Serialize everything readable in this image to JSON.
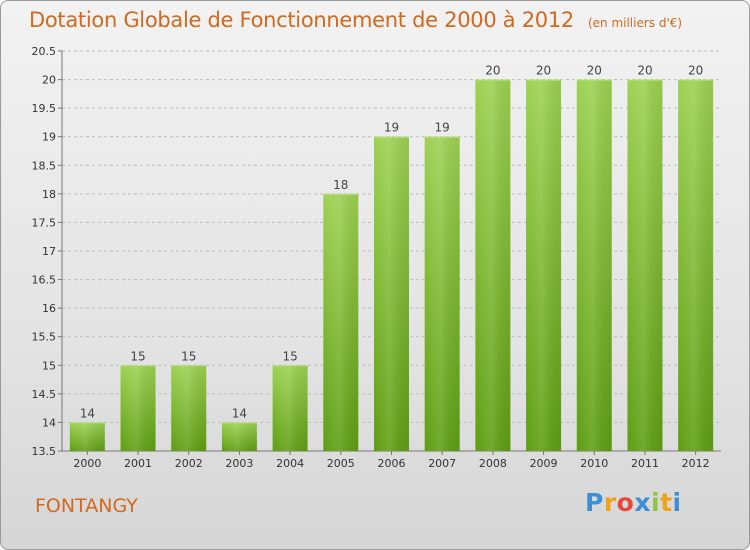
{
  "title": "Dotation Globale de Fonctionnement de 2000 à 2012",
  "subtitle": "(en milliers d'€)",
  "commune": "FONTANGY",
  "brand": {
    "letters": [
      "P",
      "r",
      "o",
      "x",
      "i",
      "t",
      "i"
    ],
    "colors": [
      "#3a8fd6",
      "#f0a21b",
      "#e9463c",
      "#3a8fd6",
      "#8dc63f",
      "#f0a21b",
      "#3a8fd6"
    ]
  },
  "chart_data": {
    "type": "bar",
    "title": "Dotation Globale de Fonctionnement de 2000 à 2012",
    "subtitle": "(en milliers d'€)",
    "categories": [
      "2000",
      "2001",
      "2002",
      "2003",
      "2004",
      "2005",
      "2006",
      "2007",
      "2008",
      "2009",
      "2010",
      "2011",
      "2012"
    ],
    "values": [
      14,
      15,
      15,
      14,
      15,
      18,
      19,
      19,
      20,
      20,
      20,
      20,
      20
    ],
    "labels": [
      "14",
      "15",
      "15",
      "14",
      "15",
      "18",
      "19",
      "19",
      "20",
      "20",
      "20",
      "20",
      "20"
    ],
    "yticks": [
      "13.5",
      "14",
      "14.5",
      "15",
      "15.5",
      "16",
      "16.5",
      "17",
      "17.5",
      "18",
      "18.5",
      "19",
      "19.5",
      "20",
      "20.5"
    ],
    "ylim": [
      13.5,
      20.5
    ],
    "xlabel": "",
    "ylabel": "",
    "grid": true,
    "bar_color": "#7cbd2e"
  }
}
